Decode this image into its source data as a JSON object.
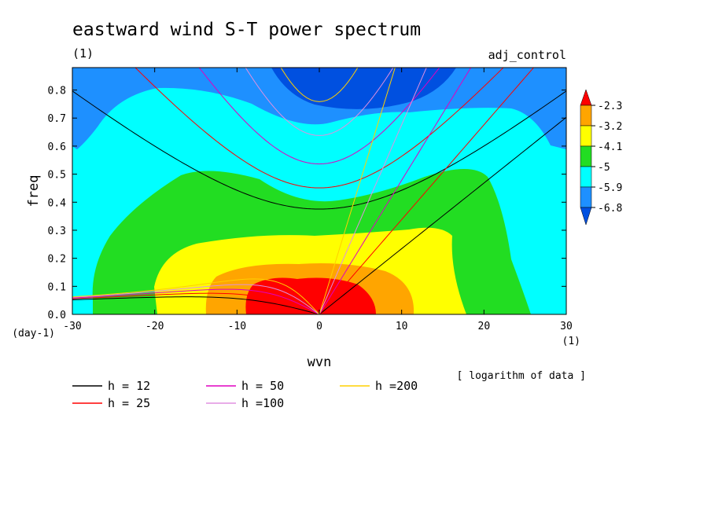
{
  "title": "eastward wind S-T power spectrum",
  "subtitle_left": "(1)",
  "subtitle_right": "adj_control",
  "chart_data": {
    "type": "heatmap",
    "title": "eastward wind S-T power spectrum",
    "xlabel": "wvn",
    "ylabel": "freq",
    "x_unit": "(1)",
    "y_unit": "(day-1)",
    "xlim": [
      -30,
      30
    ],
    "ylim": [
      0,
      0.88
    ],
    "xticks": [
      -30,
      -20,
      -10,
      0,
      10,
      20,
      30
    ],
    "xtick_labels": [
      "-30",
      "-20",
      "-10",
      "0",
      "10",
      "20",
      "30"
    ],
    "yticks": [
      0.0,
      0.1,
      0.2,
      0.3,
      0.4,
      0.5,
      0.6,
      0.7,
      0.8
    ],
    "ytick_labels": [
      "0.0",
      "0.1",
      "0.2",
      "0.3",
      "0.4",
      "0.5",
      "0.6",
      "0.7",
      "0.8"
    ],
    "colorbar": {
      "levels": [
        "-2.3",
        "-3.2",
        "-4.1",
        "-5",
        "-5.9",
        "-6.8"
      ],
      "colors": [
        "#ff0000",
        "#ffa500",
        "#ffff00",
        "#22dd22",
        "#00ffff",
        "#1e90ff",
        "#0050e0"
      ]
    },
    "data_note": "[ logarithm of data ]",
    "contour_regions": [
      {
        "level": "< -6.8",
        "color": "#0050e0",
        "region": "top center, wvn -8 to 12, freq above 0.75"
      },
      {
        "level": "-6.8 to -5.9",
        "color": "#1e90ff",
        "region": "upper band, freq above ~0.55"
      },
      {
        "level": "-5.9 to -5",
        "color": "#00ffff",
        "region": "background"
      },
      {
        "level": "-5 to -4.1",
        "color": "#22dd22",
        "region": "wvn -28 to 25, freq below 0.52"
      },
      {
        "level": "-4.1 to -3.2",
        "color": "#ffff00",
        "region": "wvn -20 to 18, freq below 0.33"
      },
      {
        "level": "-3.2 to -2.3",
        "color": "#ffa500",
        "region": "wvn -14 to 11, freq below 0.21"
      },
      {
        "level": "> -2.3",
        "color": "#ff0000",
        "region": "wvn -9 to 7, freq below 0.13"
      }
    ],
    "series": [
      {
        "name": "h = 12",
        "color": "#000000",
        "equivalent_depth": 12
      },
      {
        "name": "h = 25",
        "color": "#ff0000",
        "equivalent_depth": 25
      },
      {
        "name": "h = 50",
        "color": "#e000c0",
        "equivalent_depth": 50
      },
      {
        "name": "h =100",
        "color": "#e090e0",
        "equivalent_depth": 100
      },
      {
        "name": "h =200",
        "color": "#ffd000",
        "equivalent_depth": 200
      }
    ]
  },
  "legend": [
    {
      "label": "h = 12",
      "color": "#000000"
    },
    {
      "label": "h = 25",
      "color": "#ff0000"
    },
    {
      "label": "h = 50",
      "color": "#e000c0"
    },
    {
      "label": "h =100",
      "color": "#e090e0"
    },
    {
      "label": "h =200",
      "color": "#ffd000"
    }
  ]
}
